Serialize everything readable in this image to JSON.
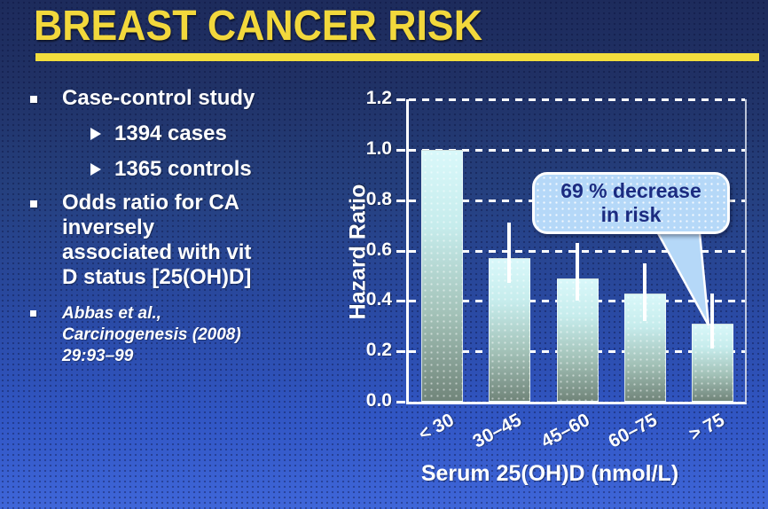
{
  "slide": {
    "title": "BREAST CANCER RISK"
  },
  "bullets": {
    "item1": "Case-control study",
    "sub1": "1394 cases",
    "sub2": "1365 controls",
    "item2": "Odds ratio for CA\ninversely\nassociated with vit\nD status [25(OH)D]",
    "citation": "Abbas et al.,\nCarcinogenesis (2008)\n29:93–99"
  },
  "callout": {
    "text": "69 % decrease\nin risk"
  },
  "chart_data": {
    "type": "bar",
    "title": "",
    "categories": [
      "< 30",
      "30–45",
      "45–60",
      "60–75",
      "> 75"
    ],
    "values": [
      1.0,
      0.57,
      0.49,
      0.43,
      0.31
    ],
    "error_low": [
      null,
      0.47,
      0.4,
      0.32,
      0.21
    ],
    "error_high": [
      null,
      0.71,
      0.63,
      0.55,
      0.43
    ],
    "xlabel": "Serum 25(OH)D (nmol/L)",
    "ylabel": "Hazard Ratio",
    "ylim": [
      0.0,
      1.2
    ],
    "yticks": [
      1.2,
      1.0,
      0.8,
      0.6,
      0.4,
      0.2,
      0.0
    ],
    "grid": "dashed-horizontal-white",
    "legend": "none",
    "annotation": {
      "text": "69 % decrease in risk",
      "points_to_category": "> 75"
    }
  },
  "colors": {
    "background_top": "#1d2b5c",
    "background_bottom": "#3f66d9",
    "title_yellow": "#f2d83c",
    "underline_yellow": "#f2dd3d",
    "body_text": "#ffffff",
    "bar_gradient_top": "#d9f8fa",
    "bar_gradient_bottom": "#71857a",
    "error_bar": "#ffffff",
    "gridline": "#ffffff",
    "callout_fill": "#b5d8f8",
    "callout_border": "#ffffff",
    "callout_text": "#1b2b80"
  }
}
